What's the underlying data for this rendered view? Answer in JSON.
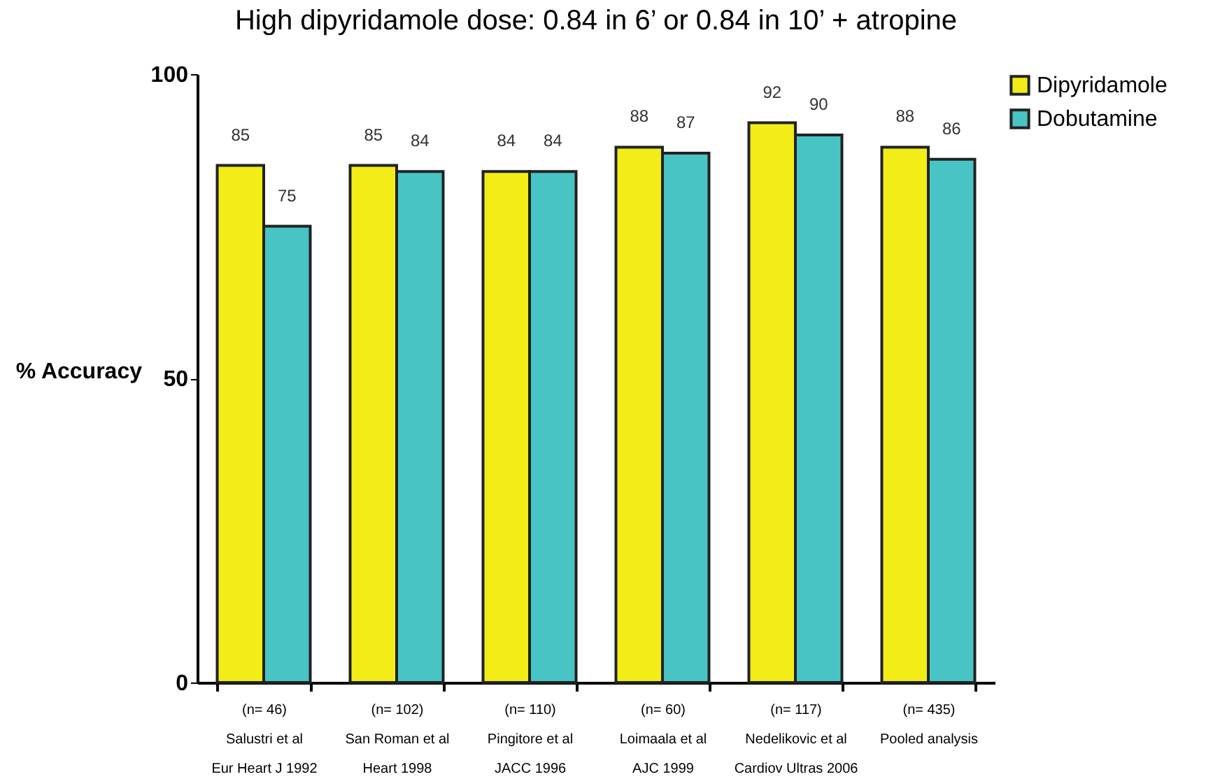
{
  "chart_data": {
    "type": "bar",
    "title": "High dipyridamole dose: 0.84 in 6’  or 0.84 in 10’ + atropine",
    "ylabel": "% Accuracy",
    "categories": [
      "(n= 46)\nSalustri et al\nEur Heart J 1992",
      "(n= 102)\nSan Roman et al\nHeart 1998",
      "(n= 110)\nPingitore et al\nJACC 1996",
      "(n= 60)\nLoimaala et al\nAJC 1999",
      "(n= 117)\nNedelikovic et al\nCardiov Ultras 2006",
      "(n= 435)\nPooled analysis"
    ],
    "series": [
      {
        "name": "Dipyridamole",
        "color": "#f2ec17",
        "values": [
          85,
          85,
          84,
          88,
          92,
          88
        ]
      },
      {
        "name": "Dobutamine",
        "color": "#48c4c4",
        "values": [
          75,
          84,
          84,
          87,
          90,
          86
        ]
      }
    ],
    "ylim": [
      0,
      100
    ],
    "yticks": [
      0,
      50,
      100
    ],
    "grid": false,
    "legend": "right",
    "data_labels": true
  }
}
